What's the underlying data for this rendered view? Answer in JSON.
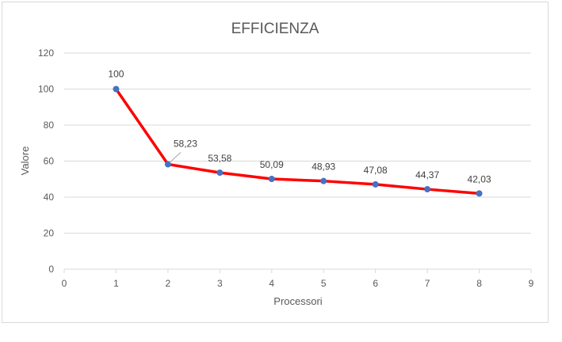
{
  "chart_data": {
    "type": "scatter",
    "title": "EFFICIENZA",
    "xlabel": "Processori",
    "ylabel": "Valore",
    "xlim": [
      0,
      9
    ],
    "ylim": [
      0,
      120
    ],
    "xticks": [
      "0",
      "1",
      "2",
      "3",
      "4",
      "5",
      "6",
      "7",
      "8",
      "9"
    ],
    "yticks": [
      "0",
      "20",
      "40",
      "60",
      "80",
      "100",
      "120"
    ],
    "grid": true,
    "legend": "none",
    "series": [
      {
        "x": [
          1,
          2,
          3,
          4,
          5,
          6,
          7,
          8
        ],
        "y": [
          100,
          58.23,
          53.58,
          50.09,
          48.93,
          47.08,
          44.37,
          42.03
        ],
        "labels": [
          "100",
          "58,23",
          "53,58",
          "50,09",
          "48,93",
          "47,08",
          "44,37",
          "42,03"
        ],
        "line_color": "#ff0000",
        "marker_color": "#4472c4"
      }
    ]
  }
}
